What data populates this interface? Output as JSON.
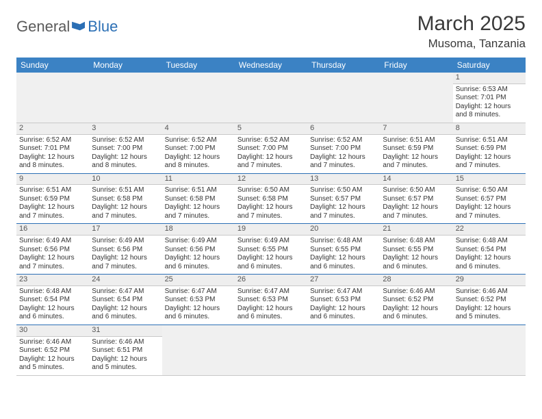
{
  "logo": {
    "text1": "General",
    "text2": "Blue"
  },
  "title": "March 2025",
  "location": "Musoma, Tanzania",
  "colors": {
    "header_bg": "#3b82c4",
    "header_text": "#ffffff",
    "border": "#2b6fb5",
    "daynum_bg": "#eeeeee",
    "logo_accent": "#2b6fb5"
  },
  "weekdays": [
    "Sunday",
    "Monday",
    "Tuesday",
    "Wednesday",
    "Thursday",
    "Friday",
    "Saturday"
  ],
  "weeks": [
    [
      null,
      null,
      null,
      null,
      null,
      null,
      {
        "n": "1",
        "sr": "Sunrise: 6:53 AM",
        "ss": "Sunset: 7:01 PM",
        "d1": "Daylight: 12 hours",
        "d2": "and 8 minutes."
      }
    ],
    [
      {
        "n": "2",
        "sr": "Sunrise: 6:52 AM",
        "ss": "Sunset: 7:01 PM",
        "d1": "Daylight: 12 hours",
        "d2": "and 8 minutes."
      },
      {
        "n": "3",
        "sr": "Sunrise: 6:52 AM",
        "ss": "Sunset: 7:00 PM",
        "d1": "Daylight: 12 hours",
        "d2": "and 8 minutes."
      },
      {
        "n": "4",
        "sr": "Sunrise: 6:52 AM",
        "ss": "Sunset: 7:00 PM",
        "d1": "Daylight: 12 hours",
        "d2": "and 8 minutes."
      },
      {
        "n": "5",
        "sr": "Sunrise: 6:52 AM",
        "ss": "Sunset: 7:00 PM",
        "d1": "Daylight: 12 hours",
        "d2": "and 7 minutes."
      },
      {
        "n": "6",
        "sr": "Sunrise: 6:52 AM",
        "ss": "Sunset: 7:00 PM",
        "d1": "Daylight: 12 hours",
        "d2": "and 7 minutes."
      },
      {
        "n": "7",
        "sr": "Sunrise: 6:51 AM",
        "ss": "Sunset: 6:59 PM",
        "d1": "Daylight: 12 hours",
        "d2": "and 7 minutes."
      },
      {
        "n": "8",
        "sr": "Sunrise: 6:51 AM",
        "ss": "Sunset: 6:59 PM",
        "d1": "Daylight: 12 hours",
        "d2": "and 7 minutes."
      }
    ],
    [
      {
        "n": "9",
        "sr": "Sunrise: 6:51 AM",
        "ss": "Sunset: 6:59 PM",
        "d1": "Daylight: 12 hours",
        "d2": "and 7 minutes."
      },
      {
        "n": "10",
        "sr": "Sunrise: 6:51 AM",
        "ss": "Sunset: 6:58 PM",
        "d1": "Daylight: 12 hours",
        "d2": "and 7 minutes."
      },
      {
        "n": "11",
        "sr": "Sunrise: 6:51 AM",
        "ss": "Sunset: 6:58 PM",
        "d1": "Daylight: 12 hours",
        "d2": "and 7 minutes."
      },
      {
        "n": "12",
        "sr": "Sunrise: 6:50 AM",
        "ss": "Sunset: 6:58 PM",
        "d1": "Daylight: 12 hours",
        "d2": "and 7 minutes."
      },
      {
        "n": "13",
        "sr": "Sunrise: 6:50 AM",
        "ss": "Sunset: 6:57 PM",
        "d1": "Daylight: 12 hours",
        "d2": "and 7 minutes."
      },
      {
        "n": "14",
        "sr": "Sunrise: 6:50 AM",
        "ss": "Sunset: 6:57 PM",
        "d1": "Daylight: 12 hours",
        "d2": "and 7 minutes."
      },
      {
        "n": "15",
        "sr": "Sunrise: 6:50 AM",
        "ss": "Sunset: 6:57 PM",
        "d1": "Daylight: 12 hours",
        "d2": "and 7 minutes."
      }
    ],
    [
      {
        "n": "16",
        "sr": "Sunrise: 6:49 AM",
        "ss": "Sunset: 6:56 PM",
        "d1": "Daylight: 12 hours",
        "d2": "and 7 minutes."
      },
      {
        "n": "17",
        "sr": "Sunrise: 6:49 AM",
        "ss": "Sunset: 6:56 PM",
        "d1": "Daylight: 12 hours",
        "d2": "and 7 minutes."
      },
      {
        "n": "18",
        "sr": "Sunrise: 6:49 AM",
        "ss": "Sunset: 6:56 PM",
        "d1": "Daylight: 12 hours",
        "d2": "and 6 minutes."
      },
      {
        "n": "19",
        "sr": "Sunrise: 6:49 AM",
        "ss": "Sunset: 6:55 PM",
        "d1": "Daylight: 12 hours",
        "d2": "and 6 minutes."
      },
      {
        "n": "20",
        "sr": "Sunrise: 6:48 AM",
        "ss": "Sunset: 6:55 PM",
        "d1": "Daylight: 12 hours",
        "d2": "and 6 minutes."
      },
      {
        "n": "21",
        "sr": "Sunrise: 6:48 AM",
        "ss": "Sunset: 6:55 PM",
        "d1": "Daylight: 12 hours",
        "d2": "and 6 minutes."
      },
      {
        "n": "22",
        "sr": "Sunrise: 6:48 AM",
        "ss": "Sunset: 6:54 PM",
        "d1": "Daylight: 12 hours",
        "d2": "and 6 minutes."
      }
    ],
    [
      {
        "n": "23",
        "sr": "Sunrise: 6:48 AM",
        "ss": "Sunset: 6:54 PM",
        "d1": "Daylight: 12 hours",
        "d2": "and 6 minutes."
      },
      {
        "n": "24",
        "sr": "Sunrise: 6:47 AM",
        "ss": "Sunset: 6:54 PM",
        "d1": "Daylight: 12 hours",
        "d2": "and 6 minutes."
      },
      {
        "n": "25",
        "sr": "Sunrise: 6:47 AM",
        "ss": "Sunset: 6:53 PM",
        "d1": "Daylight: 12 hours",
        "d2": "and 6 minutes."
      },
      {
        "n": "26",
        "sr": "Sunrise: 6:47 AM",
        "ss": "Sunset: 6:53 PM",
        "d1": "Daylight: 12 hours",
        "d2": "and 6 minutes."
      },
      {
        "n": "27",
        "sr": "Sunrise: 6:47 AM",
        "ss": "Sunset: 6:53 PM",
        "d1": "Daylight: 12 hours",
        "d2": "and 6 minutes."
      },
      {
        "n": "28",
        "sr": "Sunrise: 6:46 AM",
        "ss": "Sunset: 6:52 PM",
        "d1": "Daylight: 12 hours",
        "d2": "and 6 minutes."
      },
      {
        "n": "29",
        "sr": "Sunrise: 6:46 AM",
        "ss": "Sunset: 6:52 PM",
        "d1": "Daylight: 12 hours",
        "d2": "and 5 minutes."
      }
    ],
    [
      {
        "n": "30",
        "sr": "Sunrise: 6:46 AM",
        "ss": "Sunset: 6:52 PM",
        "d1": "Daylight: 12 hours",
        "d2": "and 5 minutes."
      },
      {
        "n": "31",
        "sr": "Sunrise: 6:46 AM",
        "ss": "Sunset: 6:51 PM",
        "d1": "Daylight: 12 hours",
        "d2": "and 5 minutes."
      },
      null,
      null,
      null,
      null,
      null
    ]
  ]
}
